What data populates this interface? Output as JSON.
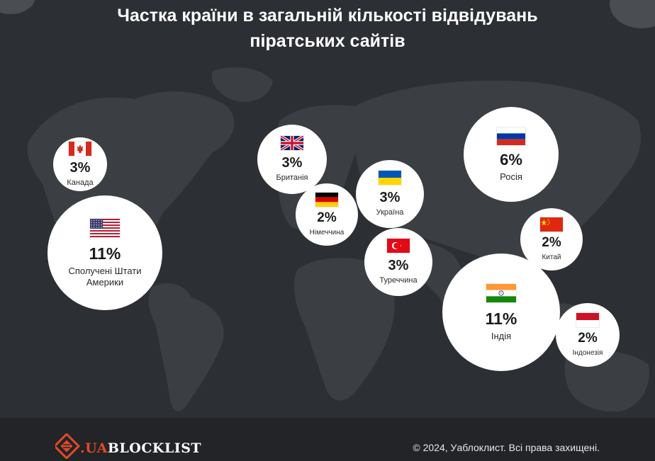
{
  "title_line1": "Частка країни в загальній кількості відвідувань",
  "title_line2": "піратських сайтів",
  "chart_data": {
    "type": "bubble-map",
    "title": "Частка країни в загальній кількості відвідувань піратських сайтів",
    "unit": "%",
    "categories": [
      "Канада",
      "Сполучені Штати Америки",
      "Британія",
      "Німеччина",
      "Україна",
      "Туреччина",
      "Росія",
      "Китай",
      "Індія",
      "Індонезія"
    ],
    "values": [
      3,
      11,
      3,
      2,
      3,
      3,
      6,
      2,
      11,
      2
    ],
    "points": [
      {
        "country": "Канада",
        "label": "3%",
        "value": 3,
        "flag": "canada-flag"
      },
      {
        "country": "Сполучені Штати Америки",
        "label": "11%",
        "value": 11,
        "flag": "usa-flag"
      },
      {
        "country": "Британія",
        "label": "3%",
        "value": 3,
        "flag": "uk-flag"
      },
      {
        "country": "Німеччина",
        "label": "2%",
        "value": 2,
        "flag": "germany-flag"
      },
      {
        "country": "Україна",
        "label": "3%",
        "value": 3,
        "flag": "ukraine-flag"
      },
      {
        "country": "Туреччина",
        "label": "3%",
        "value": 3,
        "flag": "turkey-flag"
      },
      {
        "country": "Росія",
        "label": "6%",
        "value": 6,
        "flag": "russia-flag"
      },
      {
        "country": "Китай",
        "label": "2%",
        "value": 2,
        "flag": "china-flag"
      },
      {
        "country": "Індія",
        "label": "11%",
        "value": 11,
        "flag": "india-flag"
      },
      {
        "country": "Індонезія",
        "label": "2%",
        "value": 2,
        "flag": "indonesia-flag"
      }
    ]
  },
  "footer": {
    "logo_prefix": ".UA",
    "logo_main": "BLOCKLIST",
    "copyright": "© 2024, Уаблоклист. Всі права захищені."
  },
  "colors": {
    "background": "#2c2f33",
    "footer": "#222427",
    "bubble": "#ffffff",
    "brand_accent": "#e24a2a"
  },
  "icons": [
    "world-map",
    "logo-icon"
  ]
}
